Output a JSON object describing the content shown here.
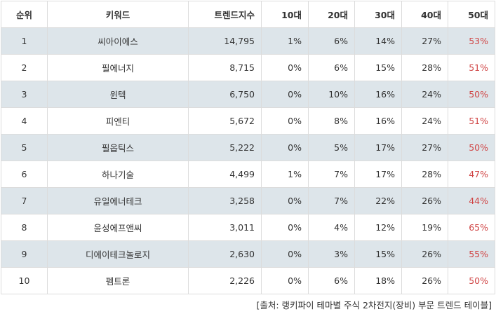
{
  "table": {
    "headers": [
      "순위",
      "키워드",
      "트렌드지수",
      "10대",
      "20대",
      "30대",
      "40대",
      "50대"
    ],
    "rows": [
      {
        "rank": "1",
        "keyword": "씨아이에스",
        "index": "14,795",
        "age10": "1%",
        "age20": "6%",
        "age30": "14%",
        "age40": "27%",
        "age50": "53%"
      },
      {
        "rank": "2",
        "keyword": "필에너지",
        "index": "8,715",
        "age10": "0%",
        "age20": "6%",
        "age30": "15%",
        "age40": "28%",
        "age50": "51%"
      },
      {
        "rank": "3",
        "keyword": "윈텍",
        "index": "6,750",
        "age10": "0%",
        "age20": "10%",
        "age30": "16%",
        "age40": "24%",
        "age50": "50%"
      },
      {
        "rank": "4",
        "keyword": "피엔티",
        "index": "5,672",
        "age10": "0%",
        "age20": "8%",
        "age30": "16%",
        "age40": "24%",
        "age50": "51%"
      },
      {
        "rank": "5",
        "keyword": "필옵틱스",
        "index": "5,222",
        "age10": "0%",
        "age20": "5%",
        "age30": "17%",
        "age40": "27%",
        "age50": "50%"
      },
      {
        "rank": "6",
        "keyword": "하나기술",
        "index": "4,499",
        "age10": "1%",
        "age20": "7%",
        "age30": "17%",
        "age40": "28%",
        "age50": "47%"
      },
      {
        "rank": "7",
        "keyword": "유일에너테크",
        "index": "3,258",
        "age10": "0%",
        "age20": "7%",
        "age30": "22%",
        "age40": "26%",
        "age50": "44%"
      },
      {
        "rank": "8",
        "keyword": "윤성에프앤씨",
        "index": "3,011",
        "age10": "0%",
        "age20": "4%",
        "age30": "12%",
        "age40": "19%",
        "age50": "65%"
      },
      {
        "rank": "9",
        "keyword": "디에이테크놀로지",
        "index": "2,630",
        "age10": "0%",
        "age20": "3%",
        "age30": "15%",
        "age40": "26%",
        "age50": "55%"
      },
      {
        "rank": "10",
        "keyword": "펨트론",
        "index": "2,226",
        "age10": "0%",
        "age20": "6%",
        "age30": "18%",
        "age40": "26%",
        "age50": "50%"
      }
    ]
  },
  "source_note": "[출처: 랭키파이 테마별 주식 2차전지(장비) 부문 트렌드 테이블]",
  "colors": {
    "odd_row_bg": "#dde5ea",
    "highlight_text": "#d04545",
    "border": "#dcdcdc"
  }
}
